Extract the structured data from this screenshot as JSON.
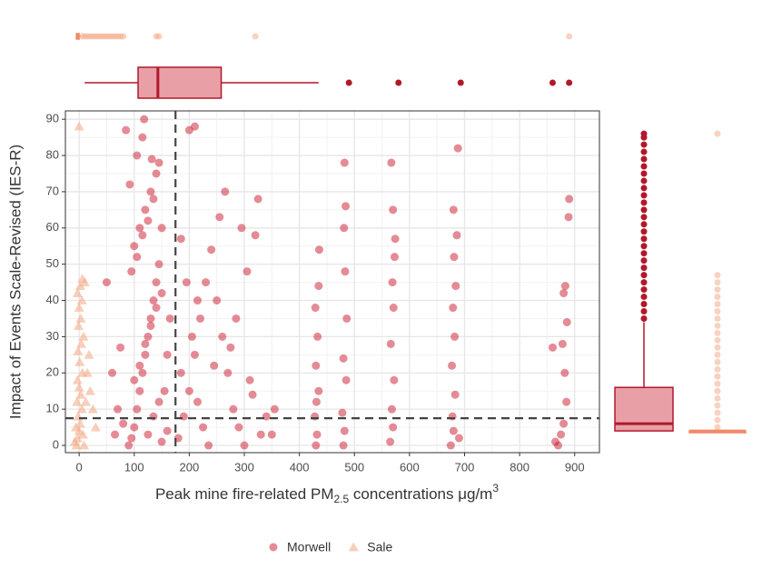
{
  "chart_data": {
    "type": "scatter",
    "x_label_parts": [
      "Peak mine fire-related PM",
      "2.5",
      " concentrations μg/m",
      "3"
    ],
    "y_label": "Impact of Events Scale-Revised (IES-R)",
    "xlim": [
      -25,
      945
    ],
    "ylim": [
      -2,
      92.3
    ],
    "xticks": [
      0,
      100,
      200,
      300,
      400,
      500,
      600,
      700,
      800,
      900
    ],
    "yticks": [
      0,
      10,
      20,
      30,
      40,
      50,
      60,
      70,
      80,
      90
    ],
    "grid": true,
    "legend": "bottom",
    "reference_lines": {
      "x": 175,
      "y": 7.5
    },
    "series": [
      {
        "name": "Morwell",
        "color": "#c9182b",
        "marker": "circle",
        "x": [
          95,
          100,
          105,
          110,
          115,
          120,
          125,
          130,
          135,
          140,
          145,
          100,
          110,
          120,
          130,
          140,
          105,
          115,
          118,
          125,
          135,
          145,
          100,
          110,
          120,
          130,
          140,
          150,
          95,
          105,
          115,
          125,
          135,
          92,
          145,
          85,
          150,
          160,
          155,
          160,
          90,
          80,
          70,
          60,
          75,
          50,
          65,
          165,
          150,
          132,
          180,
          190,
          200,
          210,
          220,
          230,
          240,
          250,
          260,
          270,
          280,
          290,
          300,
          310,
          320,
          330,
          200,
          210,
          185,
          195,
          205,
          215,
          225,
          235,
          245,
          255,
          265,
          275,
          285,
          295,
          305,
          315,
          325,
          340,
          350,
          355,
          215,
          185,
          430,
          432,
          428,
          435,
          430,
          433,
          429,
          435,
          436,
          431,
          480,
          482,
          478,
          485,
          480,
          486,
          483,
          481,
          484,
          482,
          565,
          570,
          568,
          572,
          566,
          571,
          569,
          573,
          570,
          567,
          574,
          675,
          680,
          678,
          683,
          677,
          682,
          679,
          684,
          681,
          686,
          680,
          688,
          690,
          870,
          875,
          880,
          885,
          882,
          878,
          886,
          883,
          889,
          890,
          860,
          865,
          880
        ],
        "values": [
          2,
          5,
          10,
          15,
          20,
          25,
          30,
          35,
          40,
          45,
          50,
          55,
          60,
          65,
          70,
          75,
          80,
          85,
          90,
          3,
          8,
          12,
          18,
          22,
          28,
          33,
          38,
          42,
          48,
          52,
          58,
          62,
          68,
          72,
          78,
          87,
          1,
          4,
          15,
          25,
          0,
          6,
          10,
          20,
          27,
          45,
          3,
          35,
          60,
          79,
          2,
          8,
          15,
          25,
          35,
          45,
          54,
          40,
          30,
          20,
          10,
          5,
          0,
          18,
          58,
          3,
          87,
          88,
          57,
          45,
          30,
          12,
          5,
          0,
          22,
          63,
          70,
          27,
          35,
          60,
          48,
          14,
          68,
          8,
          3,
          10,
          40,
          20,
          0,
          3,
          8,
          15,
          22,
          30,
          38,
          44,
          54,
          12,
          0,
          4,
          9,
          18,
          24,
          35,
          48,
          60,
          66,
          78,
          1,
          5,
          10,
          18,
          28,
          38,
          45,
          52,
          65,
          78,
          57,
          0,
          4,
          8,
          14,
          22,
          30,
          38,
          44,
          52,
          58,
          65,
          82,
          2,
          0,
          3,
          6,
          12,
          20,
          28,
          34,
          44,
          63,
          68,
          27,
          1,
          42
        ]
      },
      {
        "name": "Sale",
        "color": "#f4a582",
        "marker": "triangle",
        "x": [
          -5,
          -3,
          0,
          2,
          -2,
          5,
          -4,
          3,
          0,
          -3,
          6,
          1,
          -2,
          4,
          8,
          -1,
          3,
          0,
          5,
          -3,
          2,
          6,
          10,
          -6,
          12,
          15,
          18,
          7,
          -8,
          0,
          20,
          25,
          30,
          9
        ],
        "values": [
          0,
          2,
          4,
          6,
          8,
          10,
          12,
          14,
          16,
          18,
          20,
          23,
          26,
          28,
          30,
          33,
          35,
          38,
          40,
          42,
          44,
          46,
          45,
          5,
          12,
          20,
          25,
          3,
          1,
          88,
          15,
          10,
          5,
          0
        ]
      }
    ],
    "x_boxplots": [
      {
        "q1": 107,
        "median": 143,
        "q3": 258,
        "whisker_low": 10,
        "whisker_high": 435,
        "outliers": [
          490,
          580,
          693,
          860,
          890
        ]
      },
      {
        "q1": -5,
        "median": -3,
        "q3": 0,
        "whisker_low": -5,
        "whisker_high": 3,
        "outliers": [
          5,
          10,
          15,
          20,
          25,
          30,
          35,
          40,
          45,
          50,
          55,
          60,
          65,
          70,
          75,
          80,
          140,
          145,
          320,
          890
        ]
      }
    ],
    "y_boxplots": [
      {
        "q1": 4,
        "median": 6,
        "q3": 16,
        "whisker_low": 4,
        "whisker_high": 34,
        "outliers": [
          35,
          37,
          39,
          41,
          43,
          45,
          47,
          49,
          51,
          53,
          55,
          57,
          59,
          61,
          63,
          65,
          67,
          69,
          71,
          73,
          75,
          77,
          79,
          81,
          83,
          85,
          86
        ]
      },
      {
        "q1": 4,
        "median": 4,
        "q3": 4,
        "whisker_low": 4,
        "whisker_high": 4.5,
        "outliers": [
          5,
          7,
          9,
          11,
          13,
          15,
          17,
          19,
          21,
          23,
          25,
          27,
          29,
          31,
          33,
          35,
          37,
          39,
          41,
          43,
          45,
          47,
          86
        ]
      }
    ]
  }
}
